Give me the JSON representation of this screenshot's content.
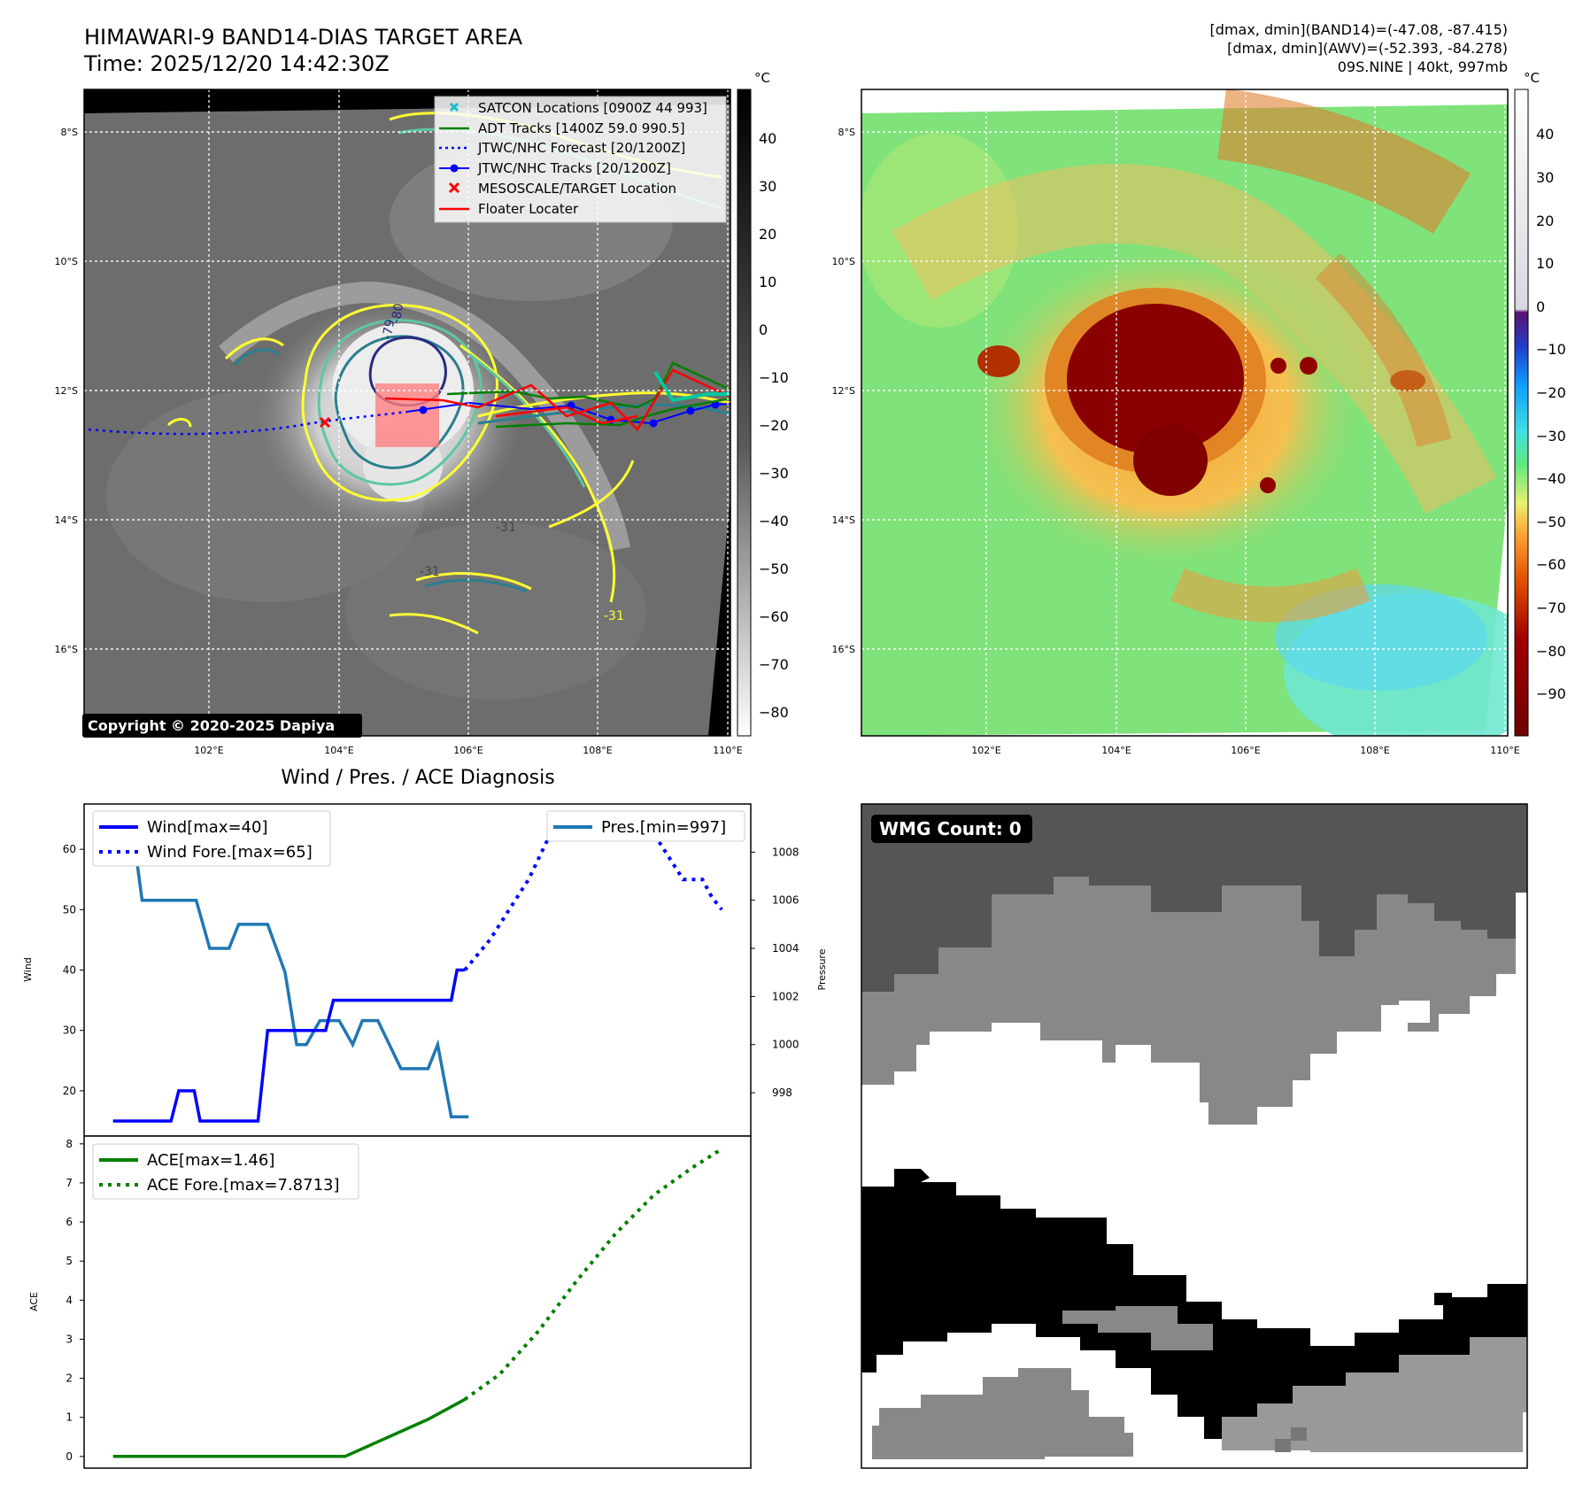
{
  "header": {
    "title": "HIMAWARI-9 BAND14-DIAS TARGET AREA",
    "time": "Time: 2025/12/20 14:42:30Z",
    "stats_band14": "[dmax, dmin](BAND14)=(-47.08, -87.415)",
    "stats_awv": "[dmax, dmin](AWV)=(-52.393, -84.278)",
    "storm": "09S.NINE | 40kt, 997mb"
  },
  "map": {
    "lat_labels": [
      "8°S",
      "10°S",
      "12°S",
      "14°S",
      "16°S"
    ],
    "lon_labels": [
      "102°E",
      "104°E",
      "106°E",
      "108°E",
      "110°E"
    ],
    "copyright": "Copyright © 2020-2025 Dapiya",
    "contour_labels": [
      "-31",
      "-31",
      "-31",
      "-79",
      "-80"
    ]
  },
  "colorbar_left": {
    "unit": "°C",
    "ticks": [
      "40",
      "30",
      "20",
      "10",
      "0",
      "−10",
      "−20",
      "−30",
      "−40",
      "−50",
      "−60",
      "−70",
      "−80"
    ]
  },
  "colorbar_right": {
    "unit": "°C",
    "ticks": [
      "40",
      "30",
      "20",
      "10",
      "0",
      "−10",
      "−20",
      "−30",
      "−40",
      "−50",
      "−60",
      "−70",
      "−80",
      "−90"
    ]
  },
  "legend": {
    "satcon": "SATCON Locations [0900Z 44 993]",
    "adt": "ADT Tracks [1400Z 59.0 990.5]",
    "jtwc_fcst": "JTWC/NHC Forecast [20/1200Z]",
    "jtwc_track": "JTWC/NHC Tracks [20/1200Z]",
    "meso": "MESOSCALE/TARGET Location",
    "floater": "Floater Locater"
  },
  "colors": {
    "wind": "#0000ff",
    "pressure": "#1f77b4",
    "ace": "#008000",
    "adt": "#008000",
    "floater": "#ff0000",
    "satcon": "#17becf",
    "contour_yellow": "#ffff33",
    "contour_green": "#5dc8a0",
    "contour_teal": "#2a7f8f",
    "contour_navy": "#2a2a80"
  },
  "diagnosis": {
    "title": "Wind / Pres. / ACE Diagnosis",
    "wind_ylabel": "Wind",
    "pres_ylabel": "Pressure",
    "ace_ylabel": "ACE",
    "legend_wind": "Wind[max=40]",
    "legend_wind_fore": "Wind Fore.[max=65]",
    "legend_pres": "Pres.[min=997]",
    "legend_ace": "ACE[max=1.46]",
    "legend_ace_fore": "ACE Fore.[max=7.8713]",
    "wind_ticks": [
      "20",
      "30",
      "40",
      "50",
      "60"
    ],
    "pres_ticks": [
      "998",
      "1000",
      "1002",
      "1004",
      "1006",
      "1008"
    ],
    "ace_ticks": [
      "0",
      "1",
      "2",
      "3",
      "4",
      "5",
      "6",
      "7",
      "8"
    ]
  },
  "wmg": {
    "label": "WMG Count: 0"
  },
  "chart_data": [
    {
      "type": "line",
      "title": "Wind / Pres. / ACE Diagnosis",
      "xlabel": "",
      "ylabel": "Wind",
      "ylim": [
        12.5,
        67.5
      ],
      "series": [
        {
          "name": "Wind[max=40]",
          "x": [
            0,
            3,
            3.4,
            4.2,
            4.5,
            5,
            7.5,
            8,
            8.4,
            11,
            11.4,
            12,
            12.8,
            13.4,
            16,
            17.5,
            17.8,
            18.2
          ],
          "values": [
            15,
            15,
            20,
            20,
            15,
            15,
            15,
            30,
            30,
            30,
            35,
            35,
            35,
            35,
            35,
            35,
            40,
            40
          ]
        },
        {
          "name": "Wind Fore.[max=65]",
          "x": [
            18.2,
            19.5,
            21.5,
            23,
            24.5,
            25,
            27.5,
            28.5,
            29.5,
            30.5,
            31,
            31.5
          ],
          "values": [
            40,
            45,
            55,
            65,
            65,
            65,
            65,
            60,
            55,
            55,
            52,
            50
          ]
        },
        {
          "name": "Pres.[min=997]",
          "x": [
            0,
            1,
            1.5,
            4.3,
            5,
            6,
            6.5,
            8,
            8.9,
            9.5,
            10,
            10.7,
            11.7,
            12.4,
            12.9,
            13.7,
            14.9,
            16.3,
            16.8,
            17.5,
            18.4
          ],
          "values": [
            1009,
            1009,
            1006,
            1006,
            1004,
            1004,
            1005,
            1005,
            1003,
            1000,
            1000,
            1001,
            1001,
            1000,
            1001,
            1001,
            999,
            999,
            1000,
            997,
            997
          ]
        }
      ]
    },
    {
      "type": "line",
      "ylabel": "ACE",
      "ylim": [
        -0.3,
        8.2
      ],
      "series": [
        {
          "name": "ACE[max=1.46]",
          "x": [
            0,
            12,
            16.3,
            18.2
          ],
          "values": [
            0,
            0,
            0.95,
            1.46
          ]
        },
        {
          "name": "ACE Fore.[max=7.8713]",
          "x": [
            18.2,
            20,
            22,
            24,
            26,
            28,
            30,
            31.5
          ],
          "values": [
            1.46,
            2.1,
            3.2,
            4.5,
            5.7,
            6.7,
            7.4,
            7.87
          ]
        }
      ]
    }
  ]
}
